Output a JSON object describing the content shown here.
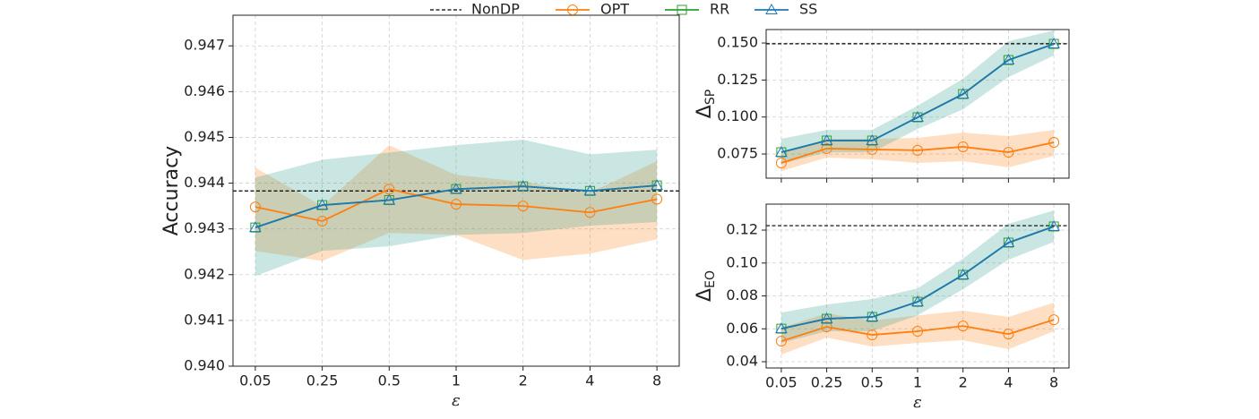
{
  "chart_data": [
    {
      "type": "line",
      "ylabel": "Accuracy",
      "xlabel": "ε",
      "grid": true,
      "categories": [
        "0.05",
        "0.25",
        "0.5",
        "1",
        "2",
        "4",
        "8"
      ],
      "ylim": [
        0.94,
        0.94767
      ],
      "yticks": [
        {
          "value": 0.94,
          "label": "0.940"
        },
        0.941,
        0.942,
        0.943,
        0.944,
        0.945,
        0.946,
        0.947
      ],
      "reference": {
        "name": "NonDP",
        "value": 0.94383,
        "color": "#000000"
      },
      "series": [
        {
          "name": "OPT",
          "color": "#ff7f0e",
          "marker": "circle",
          "band_color": "#ff7f0e",
          "values": [
            0.94348,
            0.94317,
            0.94387,
            0.94354,
            0.9435,
            0.94336,
            0.94365
          ],
          "lower": [
            0.94252,
            0.9423,
            0.94291,
            0.94287,
            0.94232,
            0.94246,
            0.94277
          ],
          "upper": [
            0.94434,
            0.9435,
            0.94483,
            0.94418,
            0.94403,
            0.94379,
            0.94448
          ]
        },
        {
          "name": "RR",
          "color": "#2ca02c",
          "marker": "square",
          "values": [
            0.94303,
            0.94352,
            0.94363,
            0.94387,
            0.94393,
            0.94383,
            0.94395
          ]
        },
        {
          "name": "SS",
          "color": "#1f77b4",
          "marker": "triangle",
          "band_color": "#2a9a8c",
          "values": [
            0.94303,
            0.94352,
            0.94363,
            0.94387,
            0.94393,
            0.94383,
            0.94395
          ],
          "lower": [
            0.94197,
            0.94252,
            0.94262,
            0.94287,
            0.94291,
            0.94307,
            0.94315
          ],
          "upper": [
            0.94412,
            0.94451,
            0.94467,
            0.94483,
            0.94495,
            0.94463,
            0.94473
          ]
        }
      ]
    },
    {
      "type": "line",
      "ylabel": "Δ",
      "ylabel_subscript": "SP",
      "grid": true,
      "categories": [
        "0.05",
        "0.25",
        "0.5",
        "1",
        "2",
        "4",
        "8"
      ],
      "ylim": [
        0.0587,
        0.1591
      ],
      "yticks": [
        0.075,
        {
          "value": 0.1,
          "label": "0.100"
        },
        0.125,
        {
          "value": 0.15,
          "label": "0.150"
        }
      ],
      "reference": {
        "name": "NonDP",
        "value": 0.1495,
        "color": "#000000"
      },
      "series": [
        {
          "name": "OPT",
          "color": "#ff7f0e",
          "marker": "circle",
          "band_color": "#ff7f0e",
          "values": [
            0.069,
            0.0787,
            0.0781,
            0.0775,
            0.0799,
            0.0762,
            0.0829
          ],
          "lower": [
            0.0635,
            0.0726,
            0.0714,
            0.069,
            0.0702,
            0.066,
            0.0738
          ],
          "upper": [
            0.075,
            0.0853,
            0.0853,
            0.0859,
            0.0895,
            0.0871,
            0.0913
          ]
        },
        {
          "name": "RR",
          "color": "#2ca02c",
          "marker": "square",
          "values": [
            0.0762,
            0.0841,
            0.0841,
            0.0998,
            0.1155,
            0.1385,
            0.1494
          ]
        },
        {
          "name": "SS",
          "color": "#1f77b4",
          "marker": "triangle",
          "band_color": "#2a9a8c",
          "values": [
            0.0762,
            0.0841,
            0.0841,
            0.0998,
            0.1155,
            0.1385,
            0.1494
          ],
          "lower": [
            0.0684,
            0.0762,
            0.0762,
            0.0919,
            0.1052,
            0.127,
            0.1416
          ],
          "upper": [
            0.0853,
            0.0913,
            0.0913,
            0.1076,
            0.1258,
            0.1512,
            0.1585
          ]
        }
      ]
    },
    {
      "type": "line",
      "ylabel": "Δ",
      "ylabel_subscript": "EO",
      "xlabel": "ε",
      "grid": true,
      "categories": [
        "0.05",
        "0.25",
        "0.5",
        "1",
        "2",
        "4",
        "8"
      ],
      "ylim": [
        0.0362,
        0.1358
      ],
      "yticks": [
        0.04,
        0.06,
        0.08,
        {
          "value": 0.1,
          "label": "0.10"
        },
        0.12
      ],
      "reference": {
        "name": "NonDP",
        "value": 0.1227,
        "color": "#000000"
      },
      "series": [
        {
          "name": "OPT",
          "color": "#ff7f0e",
          "marker": "circle",
          "band_color": "#ff7f0e",
          "values": [
            0.0525,
            0.0612,
            0.0563,
            0.0585,
            0.0617,
            0.0568,
            0.0655
          ],
          "lower": [
            0.0443,
            0.0547,
            0.0492,
            0.0514,
            0.0531,
            0.0476,
            0.0585
          ],
          "upper": [
            0.0607,
            0.0694,
            0.065,
            0.0682,
            0.071,
            0.0672,
            0.0759
          ]
        },
        {
          "name": "RR",
          "color": "#2ca02c",
          "marker": "square",
          "values": [
            0.0601,
            0.0661,
            0.0672,
            0.0764,
            0.0928,
            0.1124,
            0.1222
          ]
        },
        {
          "name": "SS",
          "color": "#1f77b4",
          "marker": "triangle",
          "band_color": "#2a9a8c",
          "values": [
            0.0601,
            0.0661,
            0.0672,
            0.0764,
            0.0928,
            0.1124,
            0.1222
          ],
          "lower": [
            0.0514,
            0.0585,
            0.0585,
            0.0682,
            0.0841,
            0.102,
            0.1129
          ],
          "upper": [
            0.0699,
            0.0748,
            0.0781,
            0.0846,
            0.1026,
            0.1238,
            0.132
          ]
        }
      ]
    }
  ]
}
